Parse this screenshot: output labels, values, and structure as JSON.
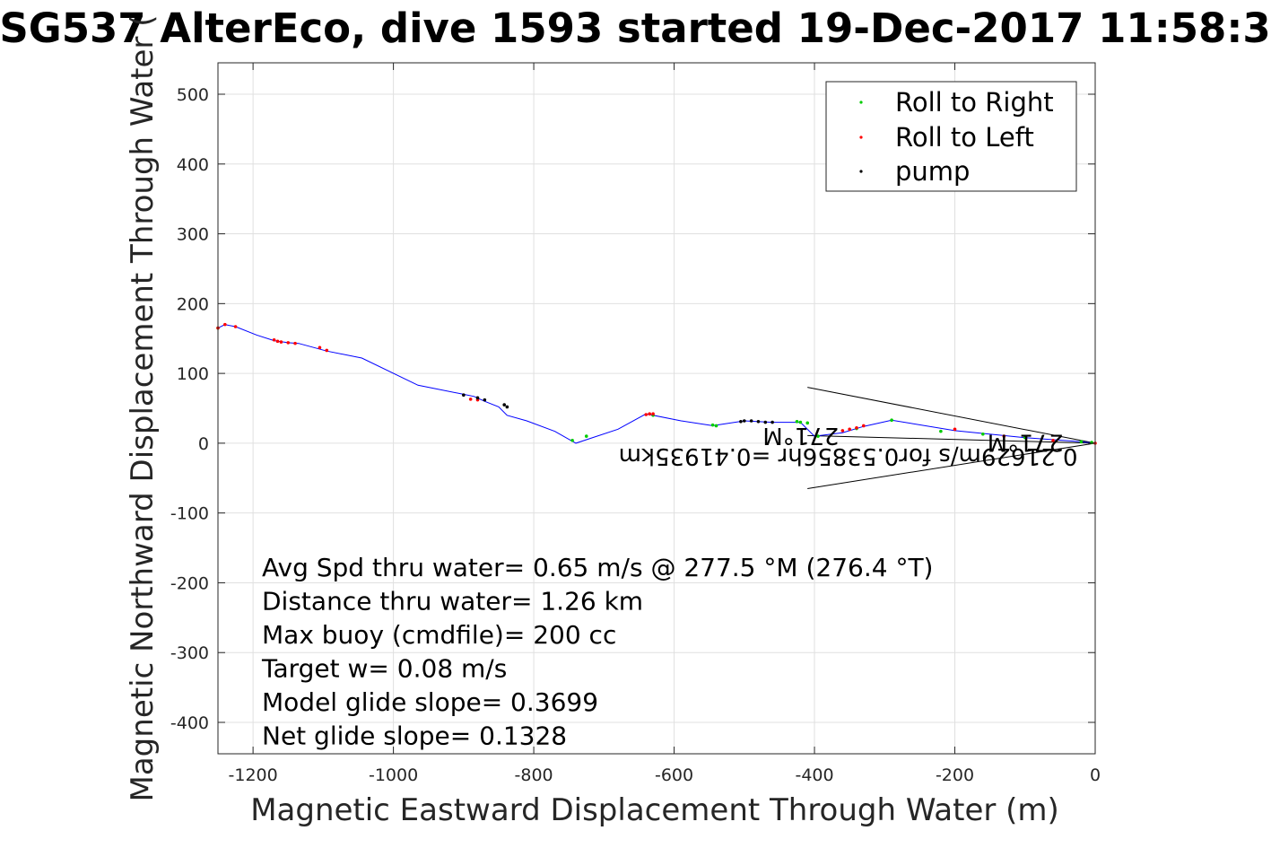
{
  "chart_data": {
    "type": "line",
    "title": "SG537 AlterEco, dive 1593 started 19-Dec-2017 11:58:3",
    "xlabel": "Magnetic Eastward Displacement Through Water (m)",
    "ylabel": "Magnetic Northward Displacement Through Water (",
    "xlim": [
      -1250,
      0
    ],
    "ylim": [
      -445,
      545
    ],
    "xticks": [
      -1200,
      -1000,
      -800,
      -600,
      -400,
      -200,
      0
    ],
    "yticks": [
      -400,
      -300,
      -200,
      -100,
      0,
      100,
      200,
      300,
      400,
      500
    ],
    "grid": true,
    "legend_position": "top-right",
    "colors": {
      "track": "#0000ff",
      "roll_right": "#00cc00",
      "roll_left": "#ff0000",
      "pump": "#000000",
      "grid": "#e0e0e0",
      "axes": "#262626"
    },
    "legend": [
      {
        "label": "Roll to Right",
        "color": "#00cc00"
      },
      {
        "label": "Roll to Left",
        "color": "#ff0000"
      },
      {
        "label": "pump",
        "color": "#000000"
      }
    ],
    "track": {
      "name": "track",
      "x": [
        0,
        -30,
        -100,
        -200,
        -290,
        -330,
        -360,
        -400,
        -420,
        -460,
        -500,
        -545,
        -590,
        -640,
        -680,
        -740,
        -770,
        -810,
        -838,
        -850,
        -870,
        -885,
        -900,
        -965,
        -1045,
        -1095,
        -1135,
        -1150,
        -1170,
        -1195,
        -1225,
        -1240,
        -1250
      ],
      "y": [
        0,
        3,
        8,
        18,
        33,
        24,
        15,
        10,
        30,
        30,
        32,
        25,
        32,
        42,
        20,
        0,
        17,
        32,
        40,
        52,
        60,
        67,
        70,
        83,
        122,
        132,
        143,
        144,
        147,
        155,
        167,
        170,
        165
      ]
    },
    "roll_right_points": {
      "x": [
        -5,
        -20,
        -100,
        -160,
        -220,
        -290,
        -340,
        -395,
        -410,
        -420,
        -425,
        -540,
        -545,
        -630,
        -725,
        -745,
        -1250
      ],
      "y": [
        1,
        2,
        8,
        13,
        17,
        33,
        21,
        10,
        29,
        30,
        31,
        25,
        26,
        40,
        10,
        4,
        165
      ]
    },
    "roll_left_points": {
      "x": [
        0,
        -60,
        -130,
        -200,
        -330,
        -340,
        -350,
        -360,
        -630,
        -635,
        -640,
        -880,
        -890,
        -1095,
        -1105,
        -1140,
        -1150,
        -1160,
        -1165,
        -1170,
        -1225,
        -1240,
        -1250
      ],
      "y": [
        0,
        4,
        10,
        20,
        25,
        22,
        20,
        18,
        42,
        42,
        41,
        62,
        63,
        133,
        137,
        143,
        144,
        145,
        146,
        148,
        167,
        170,
        165
      ]
    },
    "pump_points": {
      "x": [
        -460,
        -470,
        -480,
        -490,
        -500,
        -505,
        -838,
        -842,
        -870,
        -880,
        -900
      ],
      "y": [
        30,
        30,
        31,
        32,
        32,
        31,
        52,
        55,
        62,
        65,
        69
      ]
    },
    "lines": [
      {
        "x": [
          0,
          -410
        ],
        "y": [
          0,
          80
        ]
      },
      {
        "x": [
          0,
          -410
        ],
        "y": [
          0,
          -65
        ]
      },
      {
        "x": [
          0,
          -410
        ],
        "y": [
          0,
          11
        ]
      }
    ],
    "annotations": [
      {
        "text": "0.21629m/s for0.53856hr =0.41935km",
        "x": -25,
        "y": -8,
        "rotation": 180
      },
      {
        "text": "271°M",
        "x": -45,
        "y": 12,
        "rotation": 180
      },
      {
        "text": "271°M",
        "x": -365,
        "y": 22,
        "rotation": 180
      }
    ],
    "info_lines": [
      "Avg Spd thru water=  0.65 m/s @ 277.5 °M (276.4 °T)",
      "Distance thru water=  1.26 km",
      "Max buoy (cmdfile)= 200 cc",
      "Target w= 0.08 m/s",
      "Model glide slope= 0.3699",
      "Net glide slope= 0.1328"
    ]
  }
}
